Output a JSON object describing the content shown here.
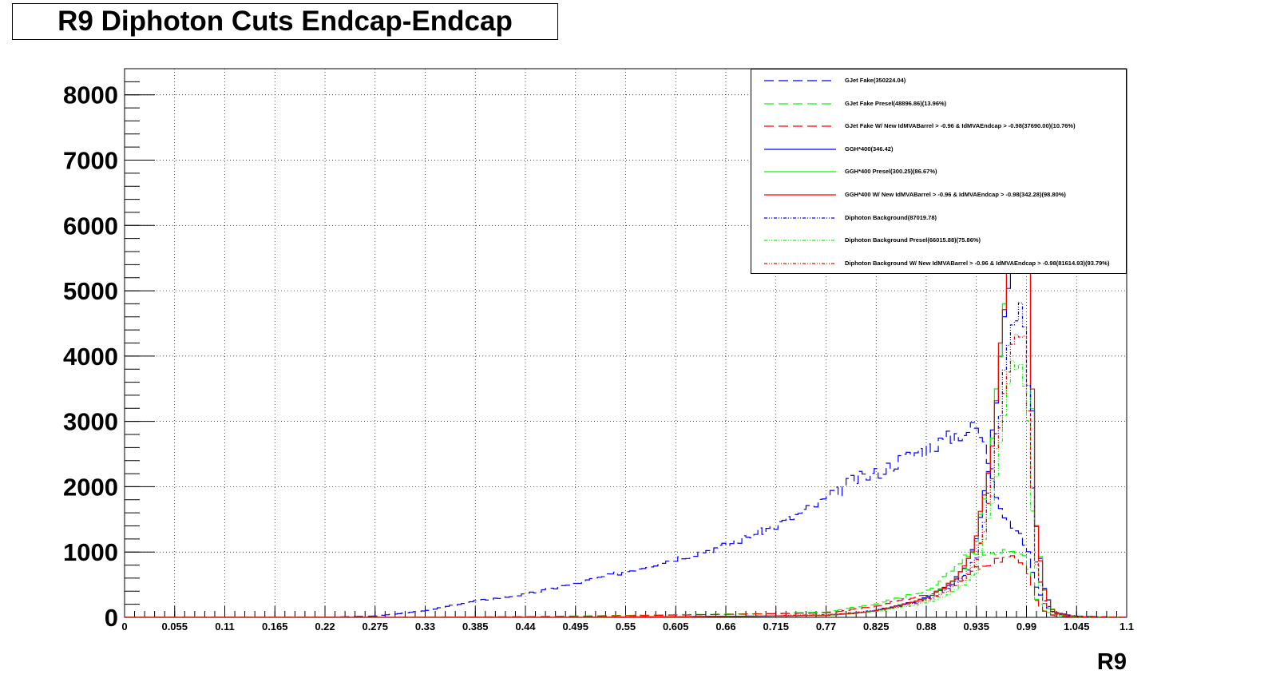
{
  "title": "R9 Diphoton Cuts Endcap-Endcap",
  "chart_data": {
    "type": "line",
    "title": "R9 Diphoton Cuts Endcap-Endcap",
    "xlabel": "R9",
    "ylabel": "",
    "xlim": [
      0,
      1.1
    ],
    "ylim": [
      0,
      8400
    ],
    "grid": true,
    "legend_position": "top-right",
    "x_ticks": [
      "0",
      "0.055",
      "0.11",
      "0.165",
      "0.22",
      "0.275",
      "0.33",
      "0.385",
      "0.44",
      "0.495",
      "0.55",
      "0.605",
      "0.66",
      "0.715",
      "0.77",
      "0.825",
      "0.88",
      "0.935",
      "0.99",
      "1.045",
      "1.1"
    ],
    "y_ticks": [
      "0",
      "1000",
      "2000",
      "3000",
      "4000",
      "5000",
      "6000",
      "7000",
      "8000"
    ],
    "x": [
      0.22,
      0.275,
      0.33,
      0.385,
      0.44,
      0.495,
      0.55,
      0.605,
      0.66,
      0.715,
      0.77,
      0.8,
      0.825,
      0.85,
      0.88,
      0.9,
      0.92,
      0.935,
      0.945,
      0.955,
      0.965,
      0.975,
      0.985,
      0.99,
      0.995,
      1.0,
      1.01,
      1.02,
      1.045,
      1.1
    ],
    "series": [
      {
        "name": "GJet Fake(350224.04)",
        "color": "#0000ff",
        "style": "dashed",
        "values": [
          0,
          20,
          100,
          250,
          350,
          520,
          700,
          900,
          1100,
          1400,
          1800,
          2100,
          2200,
          2400,
          2600,
          2700,
          2850,
          2900,
          2600,
          2000,
          1600,
          1400,
          1200,
          1100,
          800,
          500,
          200,
          80,
          20,
          0
        ]
      },
      {
        "name": "GJet Fake Presel(48896.86)(13.96%)",
        "color": "#00ff00",
        "style": "dashed",
        "values": [
          0,
          0,
          0,
          5,
          10,
          20,
          30,
          40,
          50,
          60,
          80,
          150,
          200,
          300,
          400,
          600,
          900,
          1000,
          1000,
          950,
          1000,
          1000,
          950,
          900,
          600,
          300,
          100,
          30,
          5,
          0
        ]
      },
      {
        "name": "GJet Fake W/ New IdMVABarrel > -0.96 & IdMVAEndcap > -0.98(37690.00)(10.76%)",
        "color": "#ff0000",
        "style": "dashed",
        "values": [
          0,
          0,
          0,
          5,
          10,
          15,
          25,
          35,
          45,
          55,
          70,
          120,
          170,
          260,
          340,
          450,
          600,
          750,
          800,
          850,
          900,
          900,
          850,
          800,
          550,
          280,
          90,
          25,
          5,
          0
        ]
      },
      {
        "name": "GGH*400(346.42)",
        "color": "#0000ff",
        "style": "solid",
        "values": [
          0,
          0,
          0,
          0,
          0,
          0,
          5,
          10,
          15,
          20,
          30,
          60,
          100,
          180,
          300,
          450,
          700,
          1200,
          2000,
          3000,
          4500,
          6000,
          7000,
          7500,
          4000,
          1500,
          400,
          80,
          10,
          0
        ]
      },
      {
        "name": "GGH*400 Presel(300.25)(86.67%)",
        "color": "#00ff00",
        "style": "solid",
        "values": [
          0,
          0,
          0,
          0,
          0,
          0,
          5,
          10,
          15,
          20,
          30,
          60,
          100,
          180,
          300,
          450,
          700,
          1200,
          2000,
          3000,
          4800,
          6400,
          7600,
          8000,
          4200,
          1500,
          400,
          80,
          10,
          0
        ]
      },
      {
        "name": "GGH*400 W/ New IdMVABarrel > -0.96 & IdMVAEndcap > -0.98(342.28)(98.80%)",
        "color": "#ff0000",
        "style": "solid",
        "values": [
          0,
          0,
          0,
          0,
          0,
          0,
          5,
          10,
          15,
          20,
          30,
          60,
          100,
          180,
          300,
          450,
          700,
          1200,
          2000,
          3000,
          4800,
          6600,
          8000,
          8300,
          4300,
          1500,
          400,
          80,
          10,
          0
        ]
      },
      {
        "name": "Diphoton Background(87019.78)",
        "color": "#0000ff",
        "style": "dashdot",
        "values": [
          0,
          0,
          0,
          0,
          0,
          0,
          5,
          10,
          15,
          25,
          40,
          70,
          110,
          180,
          270,
          400,
          600,
          900,
          1500,
          2500,
          3600,
          4500,
          4700,
          4200,
          2500,
          900,
          250,
          60,
          10,
          0
        ]
      },
      {
        "name": "Diphoton Background Presel(66015.88)(75.86%)",
        "color": "#00ff00",
        "style": "dashdot",
        "values": [
          0,
          0,
          0,
          0,
          0,
          0,
          5,
          10,
          15,
          20,
          35,
          60,
          90,
          150,
          220,
          320,
          480,
          700,
          1200,
          2000,
          3000,
          3800,
          3900,
          3500,
          2100,
          800,
          200,
          50,
          8,
          0
        ]
      },
      {
        "name": "Diphoton Background W/ New IdMVABarrel > -0.96 & IdMVAEndcap > -0.98(81614.93)(93.79%)",
        "color": "#ff0000",
        "style": "dashdot",
        "values": [
          0,
          0,
          0,
          0,
          0,
          0,
          5,
          10,
          15,
          25,
          40,
          65,
          100,
          170,
          250,
          380,
          560,
          850,
          1400,
          2300,
          3400,
          4300,
          4500,
          4000,
          2400,
          850,
          230,
          55,
          9,
          0
        ]
      }
    ]
  }
}
